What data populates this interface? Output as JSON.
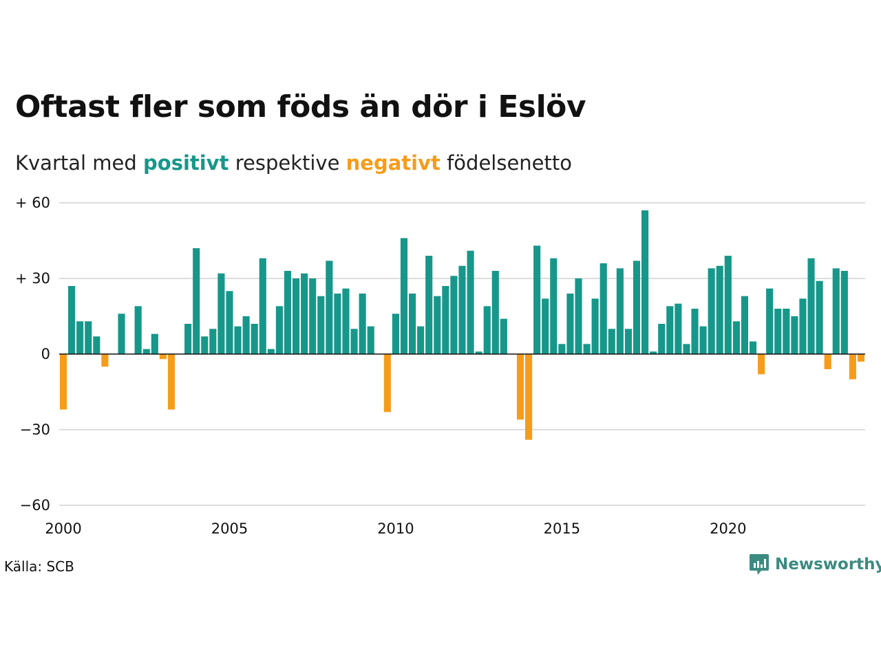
{
  "title": "Oftast fler som föds än dör i Eslöv",
  "subtitle": {
    "part1": "Kvartal med ",
    "positive": "positivt",
    "part2": " respektive ",
    "negative": "negativt",
    "part3": " födelsenetto"
  },
  "source": "Källa: SCB",
  "logo": {
    "text": "Newsworthy",
    "icon": "newsworthy-logo-icon"
  },
  "colors": {
    "positive": "#17978a",
    "negative": "#f79c1a",
    "grid": "#dddddd",
    "zero": "#111111"
  },
  "chart_data": {
    "type": "bar",
    "x_unit": "quarter",
    "start_year": 2000,
    "ylim": [
      -60,
      60
    ],
    "yticks": [
      {
        "value": 60,
        "label": "+ 60"
      },
      {
        "value": 30,
        "label": "+ 30"
      },
      {
        "value": 0,
        "label": "0"
      },
      {
        "value": -30,
        "label": "−30"
      },
      {
        "value": -60,
        "label": "−60"
      }
    ],
    "xticks": [
      {
        "year": 2000,
        "label": "2000"
      },
      {
        "year": 2005,
        "label": "2005"
      },
      {
        "year": 2010,
        "label": "2010"
      },
      {
        "year": 2015,
        "label": "2015"
      },
      {
        "year": 2020,
        "label": "2020"
      }
    ],
    "values": [
      -22,
      27,
      13,
      13,
      7,
      -5,
      0,
      16,
      0,
      19,
      2,
      8,
      -2,
      -22,
      0,
      12,
      42,
      7,
      10,
      32,
      25,
      11,
      15,
      12,
      38,
      2,
      19,
      33,
      30,
      32,
      30,
      23,
      37,
      24,
      26,
      10,
      24,
      11,
      0,
      -23,
      16,
      46,
      24,
      11,
      39,
      23,
      27,
      31,
      35,
      41,
      1,
      19,
      33,
      14,
      0,
      -26,
      -34,
      43,
      22,
      38,
      4,
      24,
      30,
      4,
      22,
      36,
      10,
      34,
      10,
      37,
      57,
      1,
      12,
      19,
      20,
      4,
      18,
      11,
      34,
      35,
      39,
      13,
      23,
      5,
      -8,
      26,
      18,
      18,
      15,
      22,
      38,
      29,
      -6,
      34,
      33,
      -10,
      -3
    ]
  }
}
